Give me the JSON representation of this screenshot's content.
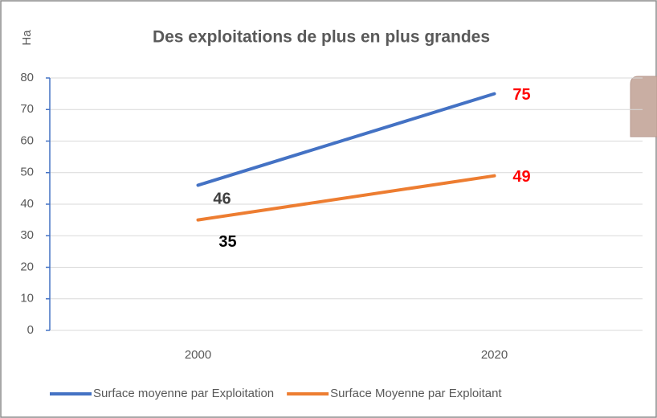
{
  "chart_data": {
    "type": "line",
    "title": "Des exploitations de plus en plus grandes",
    "y_label": "Ha",
    "categories": [
      "2000",
      "2020"
    ],
    "series": [
      {
        "name": "Surface moyenne par Exploitation",
        "color": "#4472c4",
        "values": [
          46,
          75
        ],
        "label_colors": [
          "#404040",
          "#ff0000"
        ]
      },
      {
        "name": "Surface Moyenne par Exploitant",
        "color": "#ed7d31",
        "values": [
          35,
          49
        ],
        "label_colors": [
          "#000000",
          "#ff0000"
        ]
      }
    ],
    "ylim": [
      0,
      80
    ],
    "yticks": [
      0,
      10,
      20,
      30,
      40,
      50,
      60,
      70,
      80
    ],
    "grid": true,
    "legend": "bottom"
  }
}
